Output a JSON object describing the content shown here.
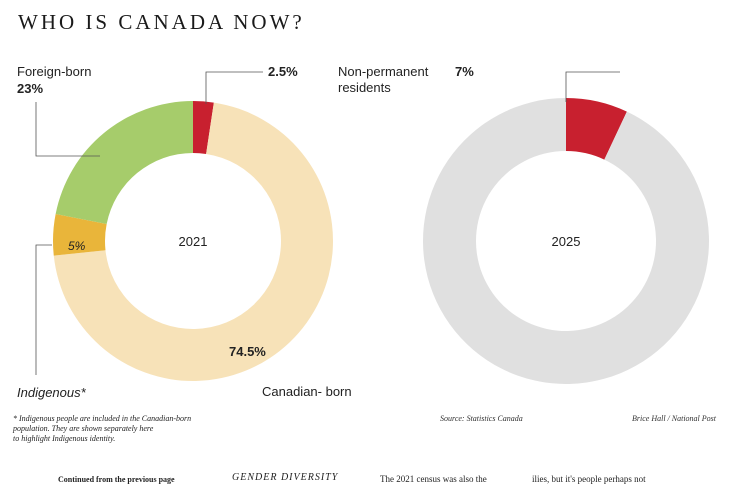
{
  "title": "WHO IS CANADA NOW?",
  "chart_data": [
    {
      "type": "pie",
      "center_label": "2021",
      "slices": [
        {
          "label": "Non-permanent residents",
          "value": 2.5,
          "display": "2.5%",
          "color": "#c8202f"
        },
        {
          "label": "Canadian- born",
          "value": 74.5,
          "display": "74.5%",
          "color": "#f7e2b8"
        },
        {
          "label": "Indigenous*",
          "value": 5,
          "display": "5%",
          "color": "#e9b53a"
        },
        {
          "label": "Foreign-born",
          "value": 23,
          "display": "23%",
          "color": "#a6cc6b"
        }
      ]
    },
    {
      "type": "pie",
      "center_label": "2025",
      "slices": [
        {
          "label": "Non-permanent residents",
          "value": 7,
          "display": "7%",
          "color": "#c8202f"
        },
        {
          "label": "",
          "value": 93,
          "display": "",
          "color": "#e0e0e0"
        }
      ]
    }
  ],
  "labels": {
    "foreign_born": "Foreign-born",
    "foreign_born_pct": "23%",
    "npr_2021_pct": "2.5%",
    "npr": "Non-permanent\nresidents",
    "npr_line1": "Non-permanent",
    "npr_line2": "residents",
    "npr_2025_pct": "7%",
    "indigenous_pct": "5%",
    "indigenous": "Indigenous*",
    "canadian_born_pct": "74.5%",
    "canadian_born": "Canadian- born"
  },
  "footnote": {
    "line1": "* Indigenous people are included in the Canadian-born",
    "line2": "population. They are shown separately here",
    "line3": "to highlight Indigenous identity."
  },
  "source": "Source: Statistics Canada",
  "credit": "Brice Hall / National Post",
  "footer": {
    "continued": "Continued from the previous page",
    "section": "GENDER DIVERSITY",
    "text1": "The 2021 census was also the",
    "text2": "ilies, but it's people perhaps not"
  }
}
